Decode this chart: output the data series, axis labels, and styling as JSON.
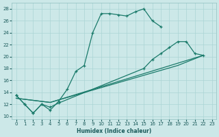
{
  "xlabel": "Humidex (Indice chaleur)",
  "xlim": [
    -0.5,
    23.5
  ],
  "ylim": [
    9.5,
    29
  ],
  "xticks": [
    0,
    1,
    2,
    3,
    4,
    5,
    6,
    7,
    8,
    9,
    10,
    11,
    12,
    13,
    14,
    15,
    16,
    17,
    18,
    19,
    20,
    21,
    22,
    23
  ],
  "yticks": [
    10,
    12,
    14,
    16,
    18,
    20,
    22,
    24,
    26,
    28
  ],
  "bg_color": "#cce8e8",
  "line_color": "#1a7a6a",
  "grid_color": "#aad4d4",
  "line1_x": [
    0,
    1,
    2,
    3,
    4,
    5,
    6,
    7,
    8,
    9,
    10,
    11,
    12,
    13,
    14,
    15,
    16,
    17
  ],
  "line1_y": [
    13.5,
    12.0,
    10.5,
    12.0,
    11.0,
    12.5,
    14.5,
    17.5,
    18.5,
    24.0,
    27.2,
    27.2,
    27.0,
    26.8,
    27.5,
    28.0,
    26.0,
    25.0
  ],
  "line2_x": [
    0,
    1,
    2,
    3,
    4,
    5,
    15,
    16,
    17,
    18,
    19,
    20,
    21,
    22
  ],
  "line2_y": [
    13.5,
    12.0,
    10.5,
    12.0,
    11.5,
    12.2,
    18.0,
    19.5,
    20.5,
    21.5,
    22.5,
    22.5,
    20.5,
    20.2
  ],
  "line3_x": [
    0,
    4,
    22
  ],
  "line3_y": [
    13.0,
    12.3,
    20.2
  ],
  "line4_x": [
    0,
    4,
    19,
    22
  ],
  "line4_y": [
    13.0,
    12.3,
    18.5,
    20.2
  ]
}
